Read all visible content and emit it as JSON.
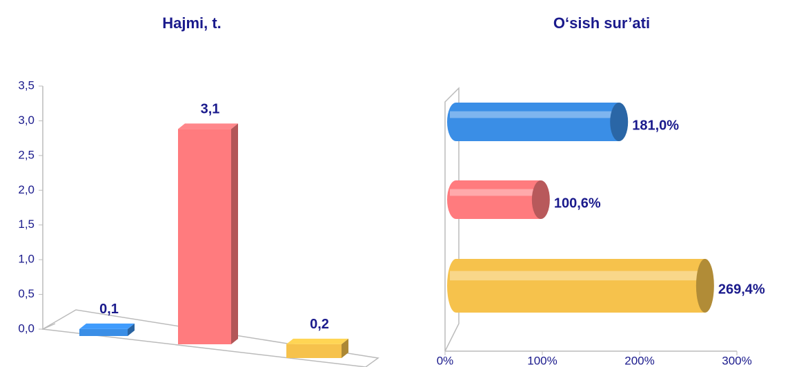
{
  "chart_data": [
    {
      "type": "bar3d",
      "title": "Hajmi, t.",
      "categories": [
        null,
        null,
        null
      ],
      "values": [
        0.1,
        3.1,
        0.2
      ],
      "value_labels": [
        "0,1",
        "3,1",
        "0,2"
      ],
      "colors": [
        "#3a8ee6",
        "#ff7b7e",
        "#f6c24c"
      ],
      "ylim": [
        0,
        3.5
      ],
      "yticks": [
        {
          "value": 0,
          "label": "0,0"
        },
        {
          "value": 0.5,
          "label": "0,5"
        },
        {
          "value": 1,
          "label": "1,0"
        },
        {
          "value": 1.5,
          "label": "1,5"
        },
        {
          "value": 2,
          "label": "2,0"
        },
        {
          "value": 2.5,
          "label": "2,5"
        },
        {
          "value": 3,
          "label": "3,0"
        },
        {
          "value": 3.5,
          "label": "3,5"
        }
      ]
    },
    {
      "type": "cylinder-h",
      "title": "O‘sish sur’ati",
      "categories": [
        null,
        null,
        null
      ],
      "values": [
        181.0,
        100.6,
        269.4
      ],
      "value_labels": [
        "181,0%",
        "100,6%",
        "269,4%"
      ],
      "colors": [
        "#3a8ee6",
        "#ff7b7e",
        "#f6c24c"
      ],
      "xlim": [
        0,
        300
      ],
      "xticks": [
        {
          "value": 0,
          "label": "0%"
        },
        {
          "value": 100,
          "label": "100%"
        },
        {
          "value": 200,
          "label": "200%"
        },
        {
          "value": 300,
          "label": "300%"
        }
      ]
    }
  ]
}
